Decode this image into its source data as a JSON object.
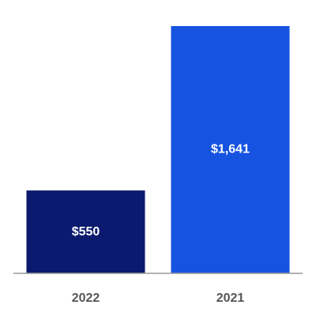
{
  "chart_data": {
    "type": "bar",
    "categories": [
      "2022",
      "2021"
    ],
    "values": [
      550,
      1641
    ],
    "value_labels": [
      "$550",
      "$1,641"
    ],
    "colors": [
      "#0b1a6e",
      "#1653e0"
    ]
  }
}
